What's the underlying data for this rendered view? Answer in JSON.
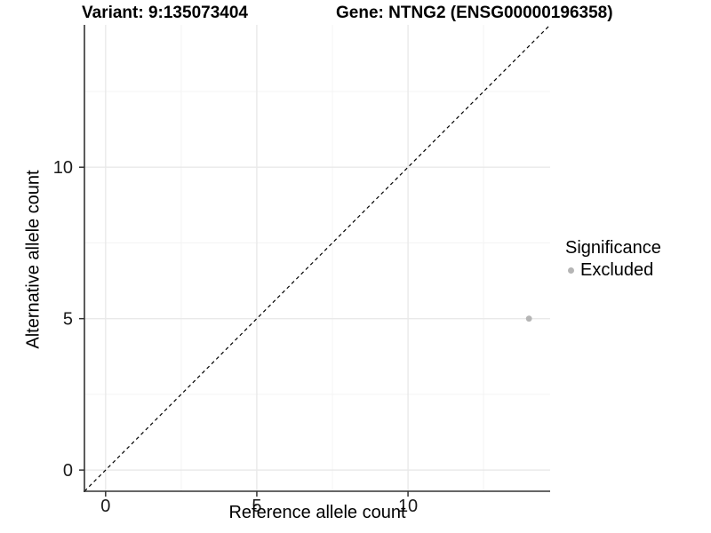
{
  "titles": {
    "variant": "Variant: 9:135073404",
    "gene": "Gene: NTNG2 (ENSG00000196358)"
  },
  "chart_data": {
    "type": "scatter",
    "title": "Variant: 9:135073404    Gene: NTNG2 (ENSG00000196358)",
    "xlabel": "Reference allele count",
    "ylabel": "Alternative allele count",
    "xlim": [
      -0.7,
      14.7
    ],
    "ylim": [
      -0.7,
      14.7
    ],
    "x_ticks": [
      0,
      5,
      10
    ],
    "y_ticks": [
      0,
      5,
      10
    ],
    "x_minor_ticks": [
      2.5,
      7.5,
      12.5
    ],
    "y_minor_ticks": [
      2.5,
      7.5,
      12.5
    ],
    "grid": "major+minor",
    "series": [
      {
        "name": "Excluded",
        "color": "#b5b5b5",
        "points": [
          {
            "x": 14,
            "y": 5
          }
        ]
      }
    ],
    "reference_line": {
      "type": "identity",
      "equation": "y = x",
      "style": "dashed",
      "color": "#000000"
    },
    "legend": {
      "title": "Significance",
      "position": "right",
      "items": [
        {
          "label": "Excluded",
          "color": "#b5b5b5"
        }
      ]
    }
  },
  "colors": {
    "background": "#ffffff",
    "grid_major": "#e9e9e9",
    "grid_minor": "#f4f4f4",
    "axis_line": "#333333",
    "tick": "#333333",
    "tick_label": "#1a1a1a",
    "text": "#000000",
    "point": "#b5b5b5"
  }
}
